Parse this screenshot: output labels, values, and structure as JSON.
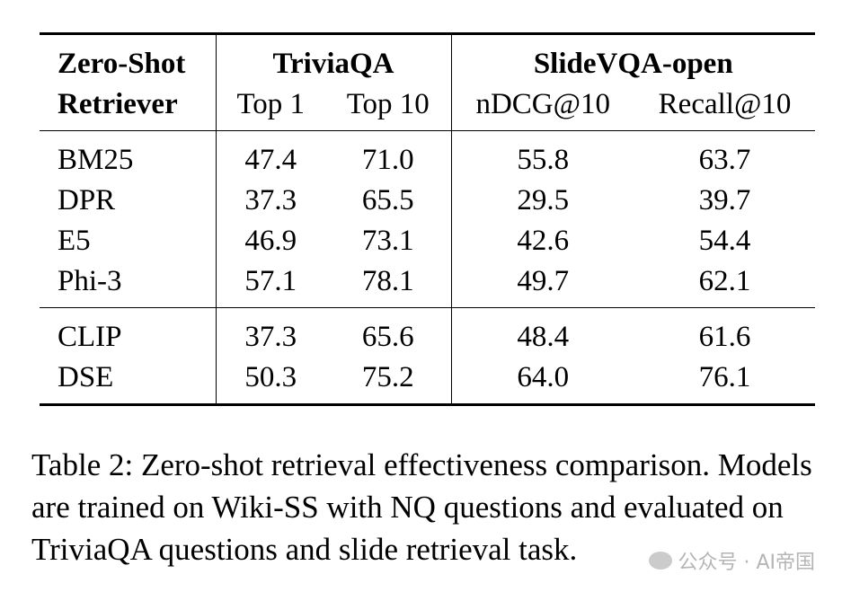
{
  "table": {
    "header": {
      "col0_line1": "Zero-Shot",
      "col0_line2": "Retriever",
      "group1": "TriviaQA",
      "group2": "SlideVQA-open",
      "sub": [
        "Top 1",
        "Top 10",
        "nDCG@10",
        "Recall@10"
      ]
    },
    "section1": [
      {
        "model": "BM25",
        "vals": [
          "47.4",
          "71.0",
          "55.8",
          "63.7"
        ]
      },
      {
        "model": "DPR",
        "vals": [
          "37.3",
          "65.5",
          "29.5",
          "39.7"
        ]
      },
      {
        "model": "E5",
        "vals": [
          "46.9",
          "73.1",
          "42.6",
          "54.4"
        ]
      },
      {
        "model": "Phi-3",
        "vals": [
          "57.1",
          "78.1",
          "49.7",
          "62.1"
        ]
      }
    ],
    "section2": [
      {
        "model": "CLIP",
        "vals": [
          "37.3",
          "65.6",
          "48.4",
          "61.6"
        ]
      },
      {
        "model": "DSE",
        "vals": [
          "50.3",
          "75.2",
          "64.0",
          "76.1"
        ]
      }
    ]
  },
  "caption": "Table 2: Zero-shot retrieval effectiveness comparison. Models are trained on Wiki-SS with NQ questions and evaluated on TriviaQA questions and slide retrieval task.",
  "watermark": "公众号 · AI帝国"
}
